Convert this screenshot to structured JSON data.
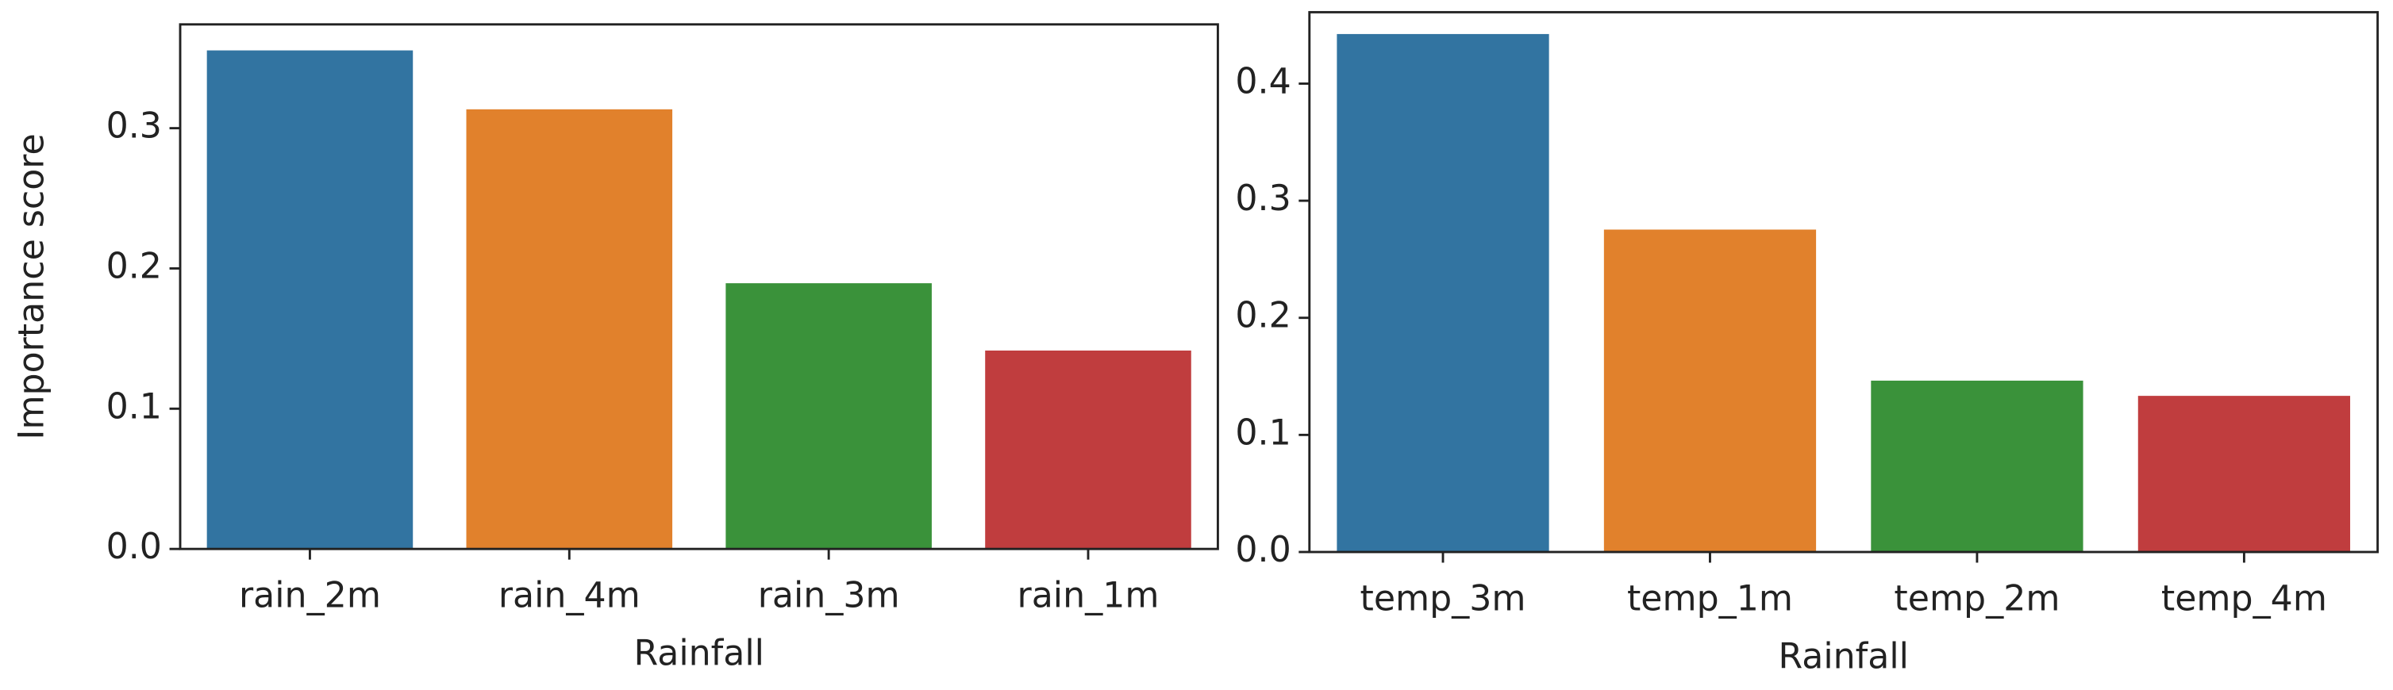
{
  "chart_data": [
    {
      "type": "bar",
      "x_label": "Rainfall",
      "y_label": "Importance score",
      "categories": [
        "rain_2m",
        "rain_4m",
        "rain_3m",
        "rain_1m"
      ],
      "values": [
        0.356,
        0.314,
        0.19,
        0.142
      ],
      "colors": [
        "#3274a1",
        "#e1812c",
        "#3a923a",
        "#c03d3e"
      ],
      "ylim": [
        0,
        0.374
      ],
      "yticks": [
        {
          "value": 0,
          "label": "0.0"
        },
        0.1,
        0.2,
        0.3
      ]
    },
    {
      "type": "bar",
      "x_label": "Rainfall",
      "categories": [
        "temp_3m",
        "temp_1m",
        "temp_2m",
        "temp_4m"
      ],
      "values": [
        0.443,
        0.276,
        0.147,
        0.134
      ],
      "colors": [
        "#3274a1",
        "#e1812c",
        "#3a923a",
        "#c03d3e"
      ],
      "ylim": [
        0,
        0.461
      ],
      "yticks": [
        {
          "value": 0,
          "label": "0.0"
        },
        0.1,
        0.2,
        0.3,
        0.4
      ]
    }
  ]
}
